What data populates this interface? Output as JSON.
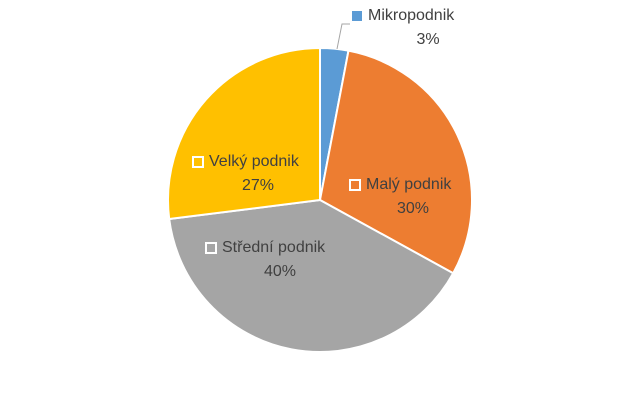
{
  "chart_data": {
    "type": "pie",
    "categories": [
      "Mikropodnik",
      "Malý podnik",
      "Střední podnik",
      "Velký podnik"
    ],
    "values": [
      3,
      30,
      40,
      27
    ],
    "value_labels": [
      "3%",
      "30%",
      "40%",
      "27%"
    ],
    "colors": [
      "#5b9bd5",
      "#ed7d31",
      "#a5a5a5",
      "#ffc000"
    ]
  }
}
